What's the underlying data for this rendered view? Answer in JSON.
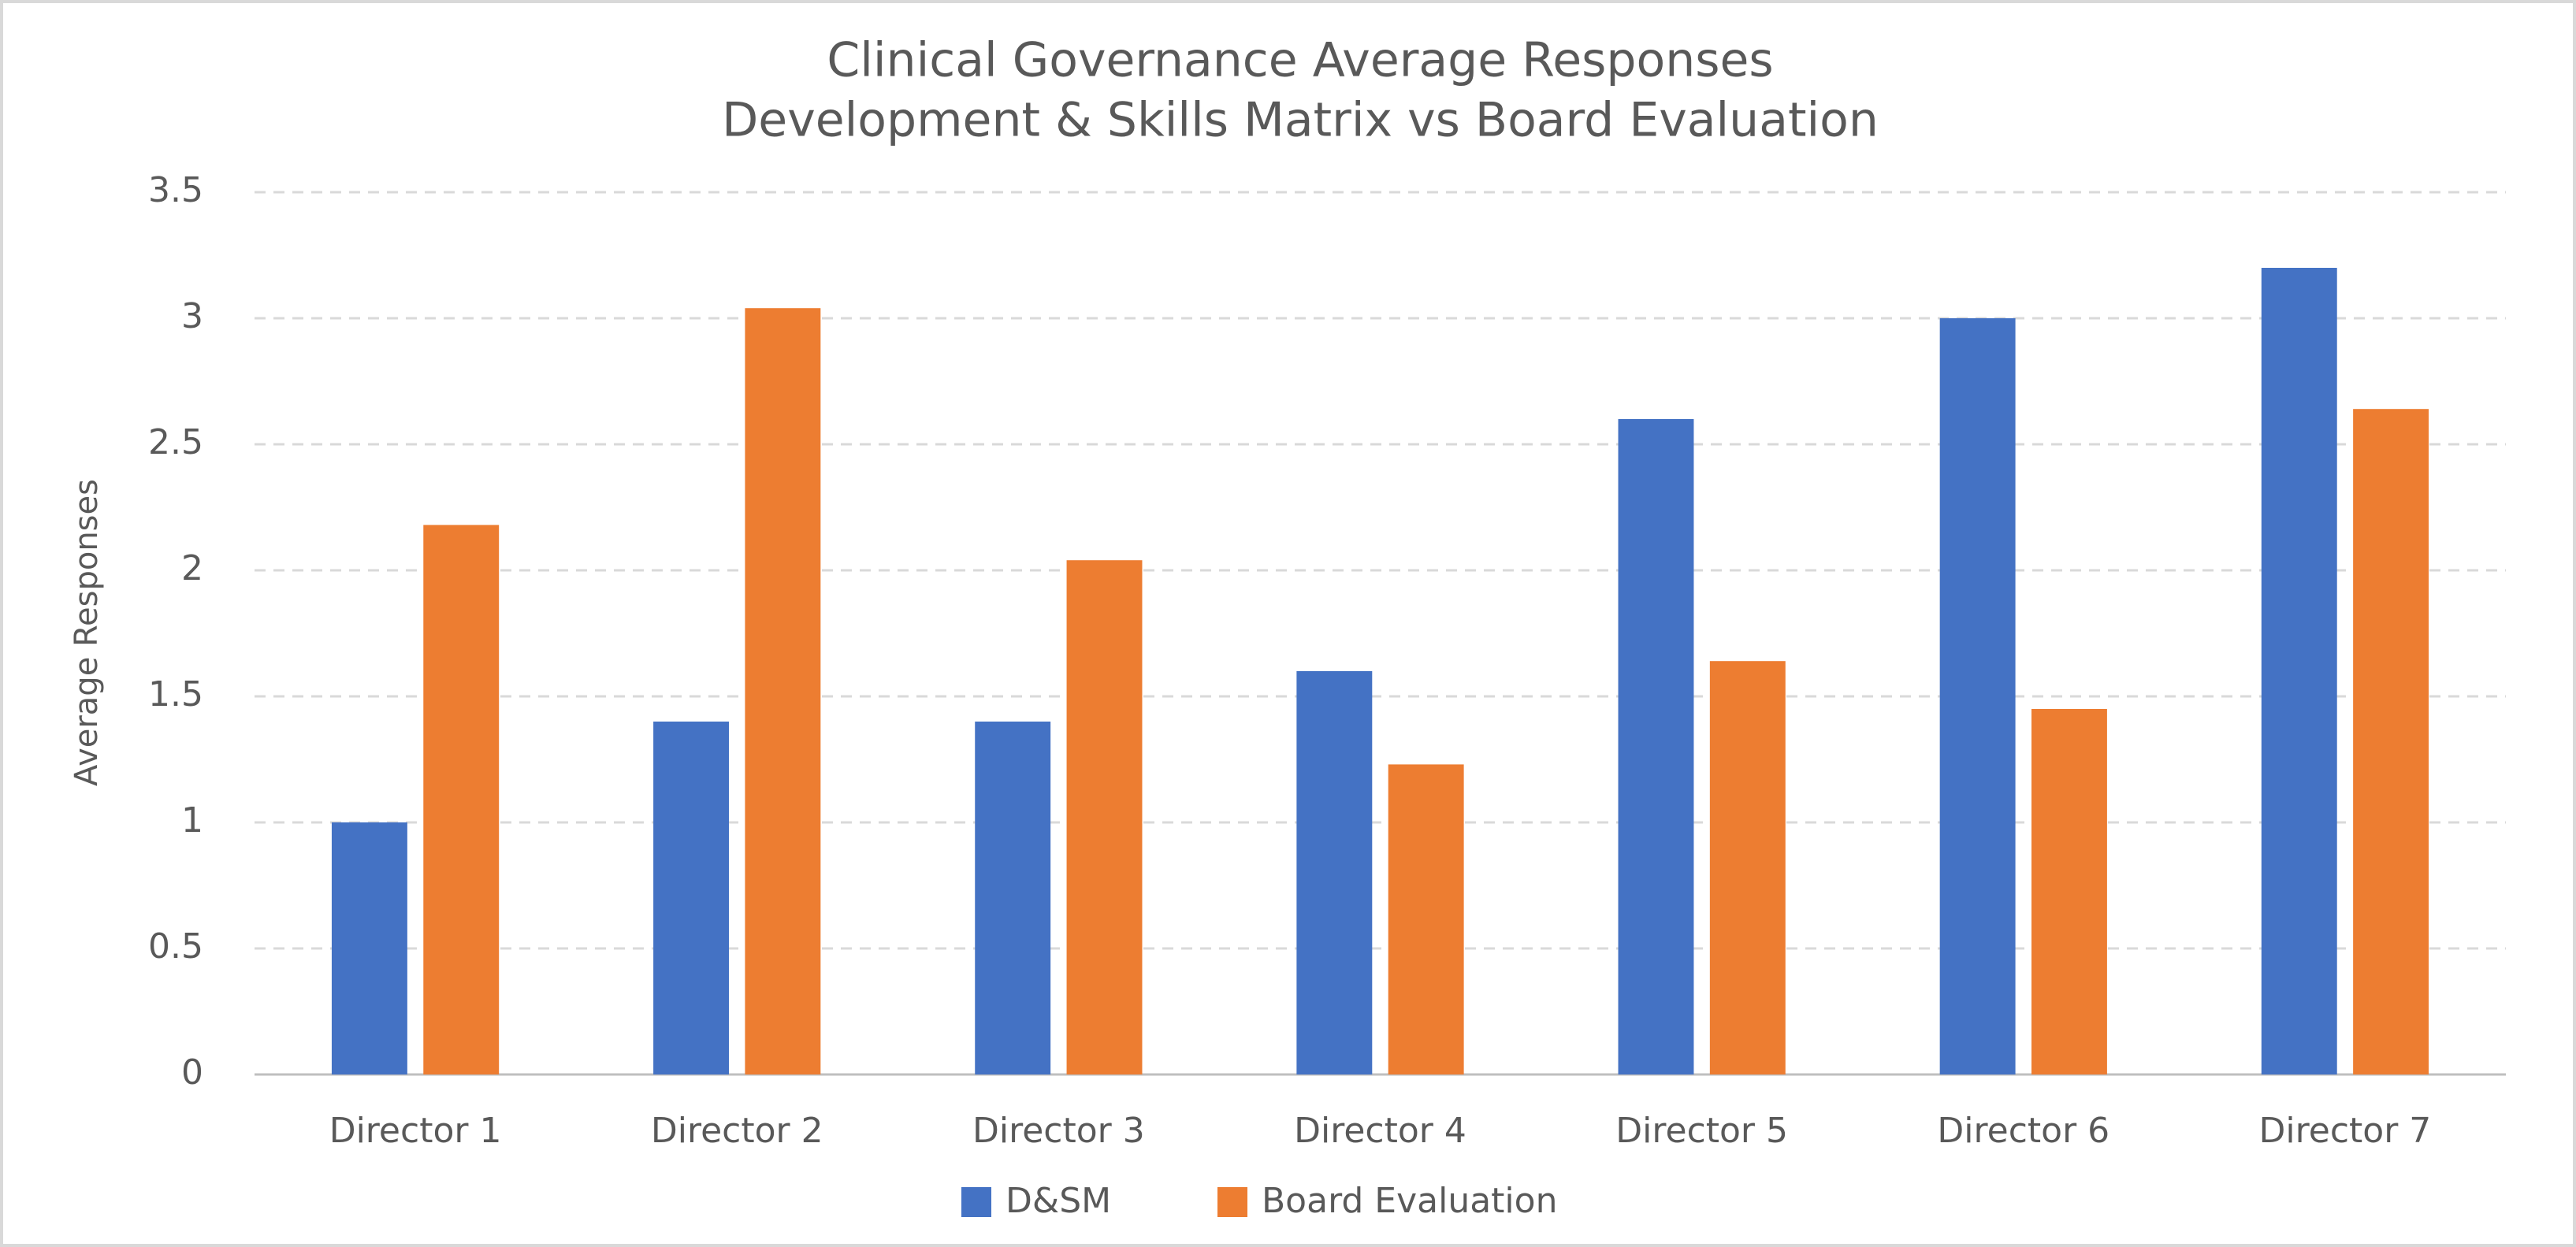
{
  "chart_data": {
    "type": "bar",
    "title": "Clinical Governance Average Responses",
    "subtitle": "Development & Skills Matrix vs Board Evaluation",
    "y_label": "Average Responses",
    "categories": [
      "Director 1",
      "Director 2",
      "Director 3",
      "Director 4",
      "Director 5",
      "Director 6",
      "Director 7"
    ],
    "series": [
      {
        "name": "D&SM",
        "color": "#4472c4",
        "values": [
          1.0,
          1.4,
          1.4,
          1.6,
          2.6,
          3.0,
          3.2
        ]
      },
      {
        "name": "Board Evaluation",
        "color": "#ed7d31",
        "values": [
          2.18,
          3.04,
          2.04,
          1.23,
          1.64,
          1.45,
          2.64
        ]
      }
    ],
    "ylim": [
      0,
      3.5
    ],
    "yticks": [
      0,
      0.5,
      1,
      1.5,
      2,
      2.5,
      3,
      3.5
    ],
    "grid": true,
    "legend": "bottom"
  }
}
